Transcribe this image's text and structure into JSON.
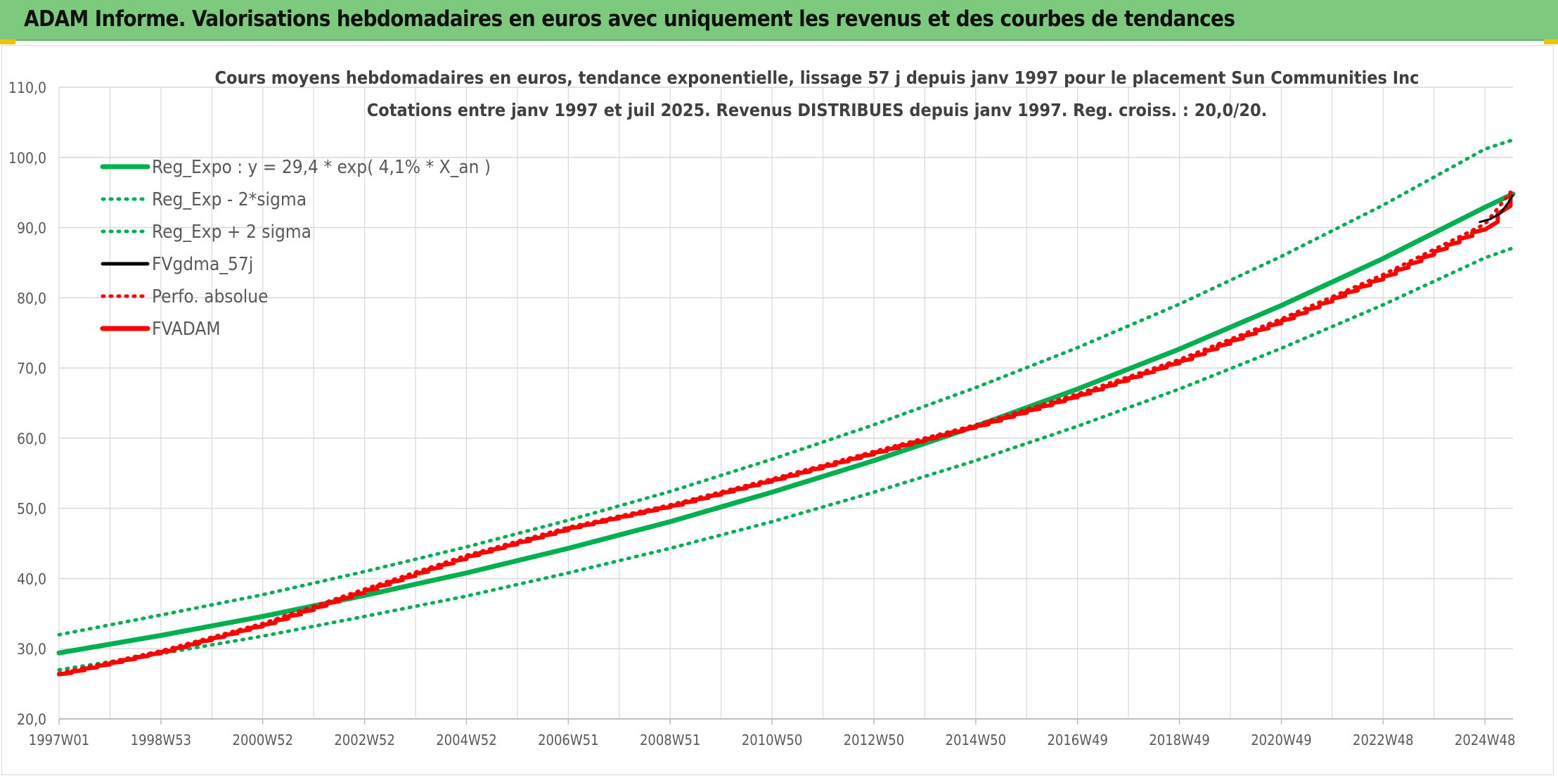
{
  "header": {
    "title": "ADAM Informe. Valorisations hebdomadaires en euros avec uniquement les revenus et des courbes de tendances"
  },
  "colors": {
    "banner": "#7dc97e",
    "reg_expo": "#00b050",
    "sigma": "#00b050",
    "fvgdma": "#000000",
    "perfo": "#ff0000",
    "fvadam": "#ff0000",
    "grid": "#d9d9d9",
    "text": "#404040"
  },
  "chart_data": {
    "type": "line",
    "title": "Cours moyens hebdomadaires en euros, tendance exponentielle, lissage 57 j depuis janv 1997 pour le placement Sun Communities Inc",
    "subtitle": "Cotations entre janv 1997 et juil 2025. Revenus DISTRIBUES depuis janv 1997. Reg. croiss. : 20,0/20.",
    "xlabel": "",
    "ylabel": "",
    "x_range": [
      1997.0,
      2025.55
    ],
    "ylim": [
      20,
      110
    ],
    "grid": true,
    "legend_position": "top-left",
    "y_ticks": [
      "20,0",
      "30,0",
      "40,0",
      "50,0",
      "60,0",
      "70,0",
      "80,0",
      "90,0",
      "100,0",
      "110,0"
    ],
    "x_ticks": [
      {
        "label": "1997W01",
        "x": 1997.0
      },
      {
        "label": "1998W53",
        "x": 1999.0
      },
      {
        "label": "2000W52",
        "x": 2001.0
      },
      {
        "label": "2002W52",
        "x": 2003.0
      },
      {
        "label": "2004W52",
        "x": 2005.0
      },
      {
        "label": "2006W51",
        "x": 2007.0
      },
      {
        "label": "2008W51",
        "x": 2009.0
      },
      {
        "label": "2010W50",
        "x": 2011.0
      },
      {
        "label": "2012W50",
        "x": 2013.0
      },
      {
        "label": "2014W50",
        "x": 2015.0
      },
      {
        "label": "2016W49",
        "x": 2017.0
      },
      {
        "label": "2018W49",
        "x": 2019.0
      },
      {
        "label": "2020W49",
        "x": 2021.0
      },
      {
        "label": "2022W48",
        "x": 2023.0
      },
      {
        "label": "2024W48",
        "x": 2025.0
      }
    ],
    "series": [
      {
        "name": "Reg_Expo : y = 29,4 * exp( 4,1% *  X_an )",
        "style": "solid-thick",
        "color": "#00b050",
        "x": [
          1997,
          1999,
          2001,
          2003,
          2005,
          2007,
          2009,
          2011,
          2013,
          2015,
          2017,
          2019,
          2021,
          2023,
          2025,
          2025.55
        ],
        "y": [
          29.4,
          31.9,
          34.6,
          37.6,
          40.8,
          44.3,
          48.1,
          52.3,
          56.8,
          61.7,
          67.0,
          72.7,
          78.9,
          85.6,
          92.9,
          94.8
        ]
      },
      {
        "name": "Reg_Exp - 2*sigma",
        "style": "dotted",
        "color": "#00b050",
        "x": [
          1997,
          1999,
          2001,
          2003,
          2005,
          2007,
          2009,
          2011,
          2013,
          2015,
          2017,
          2019,
          2021,
          2023,
          2025,
          2025.55
        ],
        "y": [
          27.0,
          29.3,
          31.8,
          34.6,
          37.5,
          40.8,
          44.3,
          48.1,
          52.3,
          56.8,
          61.7,
          67.0,
          72.8,
          79.0,
          85.7,
          87.1
        ]
      },
      {
        "name": "Reg_Exp + 2 sigma",
        "style": "dotted",
        "color": "#00b050",
        "x": [
          1997,
          1999,
          2001,
          2003,
          2005,
          2007,
          2009,
          2011,
          2013,
          2015,
          2017,
          2019,
          2021,
          2023,
          2025,
          2025.55
        ],
        "y": [
          32.0,
          34.8,
          37.7,
          41.0,
          44.5,
          48.3,
          52.4,
          57.0,
          61.9,
          67.2,
          72.9,
          79.1,
          85.9,
          93.2,
          101.2,
          102.5
        ]
      },
      {
        "name": "FVgdma_57j",
        "style": "solid",
        "color": "#000000",
        "x": [
          2024.9,
          2025.1,
          2025.3,
          2025.45,
          2025.55
        ],
        "y": [
          90.8,
          91.2,
          92.0,
          93.5,
          94.6
        ]
      },
      {
        "name": "Perfo. absolue",
        "style": "dotted",
        "color": "#ff0000",
        "x": [
          1997,
          1999,
          2001,
          2003,
          2005,
          2007,
          2009,
          2011,
          2013,
          2015,
          2017,
          2019,
          2021,
          2023,
          2025,
          2025.5
        ],
        "y": [
          26.5,
          29.7,
          33.6,
          38.5,
          43.3,
          47.3,
          50.5,
          54.2,
          58.1,
          61.9,
          66.3,
          71.2,
          77.0,
          83.3,
          90.5,
          95.0
        ]
      },
      {
        "name": "FVADAM",
        "style": "solid-thick-stepped",
        "color": "#ff0000",
        "x": [
          1997,
          1999,
          2001,
          2003,
          2005,
          2007,
          2009,
          2011,
          2013,
          2015,
          2017,
          2019,
          2021,
          2023,
          2025,
          2025.5
        ],
        "y": [
          26.5,
          29.7,
          33.6,
          38.5,
          43.3,
          47.3,
          50.5,
          54.2,
          58.1,
          61.9,
          66.3,
          71.2,
          77.0,
          83.3,
          90.5,
          95.0
        ]
      }
    ]
  }
}
